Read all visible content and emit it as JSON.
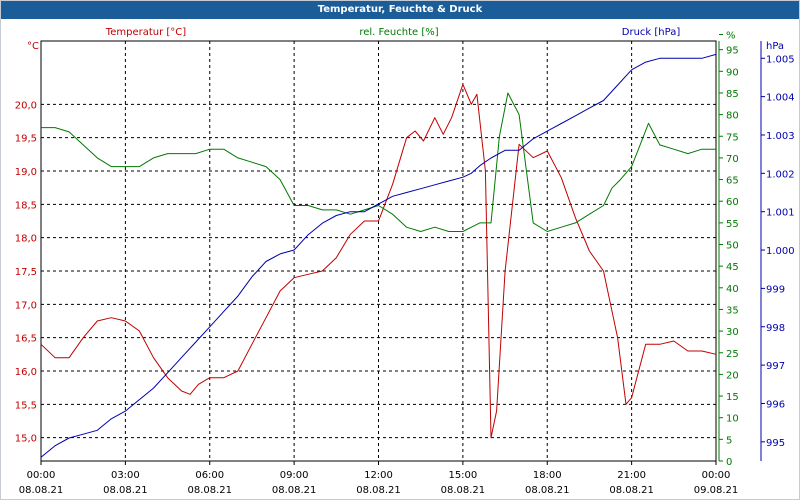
{
  "window": {
    "title": "Temperatur, Feuchte & Druck"
  },
  "chart_data": {
    "type": "line",
    "title": "Temperatur, Feuchte & Druck",
    "colors": {
      "temperature": "#c00000",
      "humidity": "#007a00",
      "pressure": "#0000b0",
      "grid": "#000000"
    },
    "x_ticks": [
      {
        "time": "00:00",
        "date": "08.08.21",
        "h": 0
      },
      {
        "time": "03:00",
        "date": "08.08.21",
        "h": 3
      },
      {
        "time": "06:00",
        "date": "08.08.21",
        "h": 6
      },
      {
        "time": "09:00",
        "date": "08.08.21",
        "h": 9
      },
      {
        "time": "12:00",
        "date": "08.08.21",
        "h": 12
      },
      {
        "time": "15:00",
        "date": "08.08.21",
        "h": 15
      },
      {
        "time": "18:00",
        "date": "08.08.21",
        "h": 18
      },
      {
        "time": "21:00",
        "date": "08.08.21",
        "h": 21
      },
      {
        "time": "00:00",
        "date": "09.08.21",
        "h": 24
      }
    ],
    "xlim": [
      0,
      24
    ],
    "axes": {
      "temperature": {
        "label": "Temperatur [°C]",
        "unit": "°C",
        "ylim": [
          14.65,
          20.95
        ],
        "ticks": [
          "15,0",
          "15,5",
          "16,0",
          "16,5",
          "17,0",
          "17,5",
          "18,0",
          "18,5",
          "19,0",
          "19,5",
          "20,0"
        ],
        "tick_values": [
          15.0,
          15.5,
          16.0,
          16.5,
          17.0,
          17.5,
          18.0,
          18.5,
          19.0,
          19.5,
          20.0
        ]
      },
      "humidity": {
        "label": "rel. Feuchte [%]",
        "unit": "%",
        "ylim": [
          0,
          97
        ],
        "ticks": [
          "0",
          "5",
          "10",
          "15",
          "20",
          "25",
          "30",
          "35",
          "40",
          "45",
          "50",
          "55",
          "60",
          "65",
          "70",
          "75",
          "80",
          "85",
          "90",
          "95",
          "%"
        ],
        "tick_values": [
          0,
          5,
          10,
          15,
          20,
          25,
          30,
          35,
          40,
          45,
          50,
          55,
          60,
          65,
          70,
          75,
          80,
          85,
          90,
          95,
          98.5
        ]
      },
      "pressure": {
        "label": "Druck [hPa]",
        "unit": "hPa",
        "ylim": [
          994.5,
          1005.45
        ],
        "ticks": [
          "995",
          "996",
          "997",
          "998",
          "999",
          "1.000",
          "1.001",
          "1.002",
          "1.003",
          "1.004",
          "1.005"
        ],
        "tick_values": [
          995,
          996,
          997,
          998,
          999,
          1000,
          1001,
          1002,
          1003,
          1004,
          1005
        ]
      }
    },
    "series": [
      {
        "name": "Temperatur [°C]",
        "key": "temperature",
        "axis": "temperature",
        "x": [
          0,
          0.5,
          1,
          1.5,
          2,
          2.5,
          3,
          3.5,
          4,
          4.5,
          5,
          5.3,
          5.6,
          6,
          6.5,
          7,
          7.5,
          8,
          8.5,
          9,
          9.5,
          10,
          10.5,
          11,
          11.5,
          12,
          12.5,
          13,
          13.3,
          13.6,
          14,
          14.3,
          14.6,
          15,
          15.3,
          15.5,
          15.8,
          16,
          16.2,
          16.5,
          17,
          17.5,
          18,
          18.5,
          19,
          19.5,
          20,
          20.5,
          20.8,
          21,
          21.5,
          22,
          22.5,
          23,
          23.5,
          24
        ],
        "values": [
          16.4,
          16.2,
          16.2,
          16.5,
          16.75,
          16.8,
          16.75,
          16.6,
          16.2,
          15.9,
          15.7,
          15.65,
          15.8,
          15.9,
          15.9,
          16.0,
          16.4,
          16.8,
          17.2,
          17.4,
          17.45,
          17.5,
          17.7,
          18.05,
          18.25,
          18.25,
          18.8,
          19.5,
          19.6,
          19.45,
          19.8,
          19.55,
          19.8,
          20.3,
          20.0,
          20.15,
          19.0,
          15.0,
          15.4,
          17.5,
          19.4,
          19.2,
          19.3,
          18.9,
          18.3,
          17.8,
          17.5,
          16.5,
          15.5,
          15.6,
          16.4,
          16.4,
          16.45,
          16.3,
          16.3,
          16.25
        ]
      },
      {
        "name": "rel. Feuchte [%]",
        "key": "humidity",
        "axis": "humidity",
        "x": [
          0,
          0.5,
          1,
          1.5,
          2,
          2.5,
          3,
          3.5,
          4,
          4.5,
          5,
          5.5,
          6,
          6.5,
          7,
          7.5,
          8,
          8.5,
          9,
          9.5,
          10,
          10.5,
          11,
          11.5,
          12,
          12.5,
          13,
          13.5,
          14,
          14.5,
          15,
          15.3,
          15.6,
          16,
          16.3,
          16.6,
          17,
          17.5,
          18,
          18.5,
          19,
          19.5,
          20,
          20.3,
          20.6,
          21,
          21.3,
          21.6,
          22,
          22.5,
          23,
          23.5,
          24
        ],
        "values": [
          77,
          77,
          76,
          73,
          70,
          68,
          68,
          68,
          70,
          71,
          71,
          71,
          72,
          72,
          70,
          69,
          68,
          65,
          59,
          59,
          58,
          58,
          57,
          58,
          59,
          57,
          54,
          53,
          54,
          53,
          53,
          54,
          55,
          55,
          75,
          85,
          80,
          55,
          53,
          54,
          55,
          57,
          59,
          63,
          65,
          68,
          73,
          78,
          73,
          72,
          71,
          72,
          72
        ]
      },
      {
        "name": "Druck [hPa]",
        "key": "pressure",
        "axis": "pressure",
        "x": [
          0,
          0.5,
          1,
          1.5,
          2,
          2.5,
          3,
          3.5,
          4,
          4.5,
          5,
          5.5,
          6,
          6.5,
          7,
          7.5,
          8,
          8.5,
          9,
          9.5,
          10,
          10.5,
          11,
          11.5,
          12,
          12.5,
          13,
          13.5,
          14,
          14.5,
          15,
          15.3,
          15.6,
          16,
          16.5,
          17,
          17.5,
          18,
          18.5,
          19,
          19.5,
          20,
          20.5,
          21,
          21.5,
          22,
          22.5,
          23,
          23.5,
          24
        ],
        "values": [
          994.6,
          994.9,
          995.1,
          995.2,
          995.3,
          995.6,
          995.8,
          996.1,
          996.4,
          996.8,
          997.2,
          997.6,
          998.0,
          998.4,
          998.8,
          999.3,
          999.7,
          999.9,
          1000.0,
          1000.4,
          1000.7,
          1000.9,
          1001.0,
          1001.0,
          1001.2,
          1001.4,
          1001.5,
          1001.6,
          1001.7,
          1001.8,
          1001.9,
          1002.0,
          1002.2,
          1002.4,
          1002.6,
          1002.6,
          1002.9,
          1003.1,
          1003.3,
          1003.5,
          1003.7,
          1003.9,
          1004.3,
          1004.7,
          1004.9,
          1005.0,
          1005.0,
          1005.0,
          1005.0,
          1005.1
        ]
      }
    ]
  }
}
